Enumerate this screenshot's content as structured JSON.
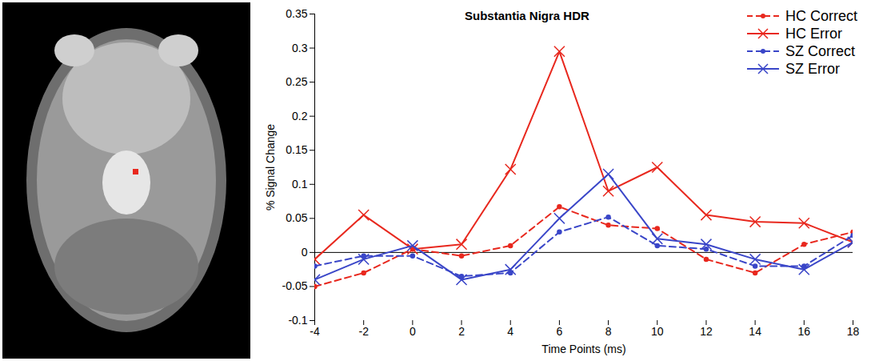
{
  "chart_data": {
    "type": "line",
    "title": "Substantia Nigra HDR",
    "x_label": "Time Points (ms)",
    "y_label": "% Signal Change",
    "x": [
      -4,
      -2,
      0,
      2,
      4,
      6,
      8,
      10,
      12,
      14,
      16,
      18
    ],
    "series": [
      {
        "name": "HC Correct",
        "color": "#e8281e",
        "marker": "dot",
        "line_style": "dashed",
        "values": [
          -0.05,
          -0.03,
          0.005,
          -0.005,
          0.01,
          0.067,
          0.04,
          0.035,
          -0.01,
          -0.03,
          0.012,
          0.03
        ]
      },
      {
        "name": "HC Error",
        "color": "#e8281e",
        "marker": "x",
        "line_style": "solid",
        "values": [
          -0.01,
          0.055,
          0.005,
          0.012,
          0.122,
          0.295,
          0.09,
          0.125,
          0.055,
          0.045,
          0.043,
          0.015
        ]
      },
      {
        "name": "SZ Correct",
        "color": "#3a46c8",
        "marker": "dot",
        "line_style": "dashed",
        "values": [
          -0.02,
          -0.005,
          -0.005,
          -0.035,
          -0.03,
          0.03,
          0.052,
          0.01,
          0.005,
          -0.02,
          -0.02,
          0.025
        ]
      },
      {
        "name": "SZ Error",
        "color": "#3a46c8",
        "marker": "x",
        "line_style": "solid",
        "values": [
          -0.04,
          -0.01,
          0.01,
          -0.04,
          -0.025,
          0.05,
          0.115,
          0.02,
          0.012,
          -0.01,
          -0.025,
          0.015
        ]
      }
    ],
    "xlim": [
      -4,
      18
    ],
    "xticks": [
      -4,
      -2,
      0,
      2,
      4,
      6,
      8,
      10,
      12,
      14,
      16,
      18
    ],
    "ylim": [
      -0.1,
      0.35
    ],
    "yticks": [
      -0.1,
      -0.05,
      0,
      0.05,
      0.1,
      0.15,
      0.2,
      0.25,
      0.3,
      0.35
    ],
    "grid": false,
    "legend": "top-right"
  }
}
